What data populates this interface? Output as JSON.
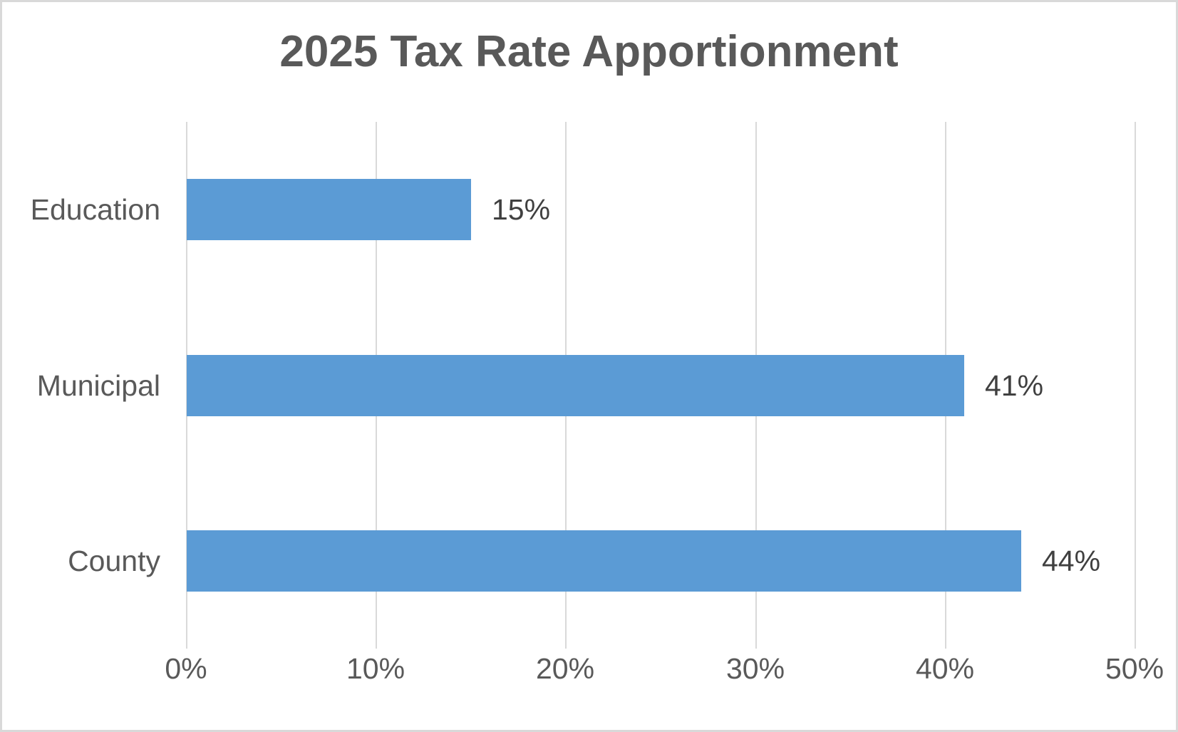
{
  "chart_data": {
    "type": "bar",
    "orientation": "horizontal",
    "title": "2025 Tax Rate Apportionment",
    "categories": [
      "Education",
      "Municipal",
      "County"
    ],
    "values": [
      15,
      41,
      44
    ],
    "value_labels": [
      "15%",
      "41%",
      "44%"
    ],
    "x_ticks": [
      "0%",
      "10%",
      "20%",
      "30%",
      "40%",
      "50%"
    ],
    "x_tick_values": [
      0,
      10,
      20,
      30,
      40,
      50
    ],
    "xlim": [
      0,
      50
    ],
    "xlabel": "",
    "ylabel": "",
    "legend": "none",
    "grid": "vertical-only",
    "bar_color": "#5b9bd5",
    "gridline_color": "#d9d9d9",
    "title_color": "#595959",
    "axis_text_color": "#595959",
    "data_label_color": "#404040",
    "background_color": "#ffffff",
    "border_color": "#d9d9d9"
  }
}
